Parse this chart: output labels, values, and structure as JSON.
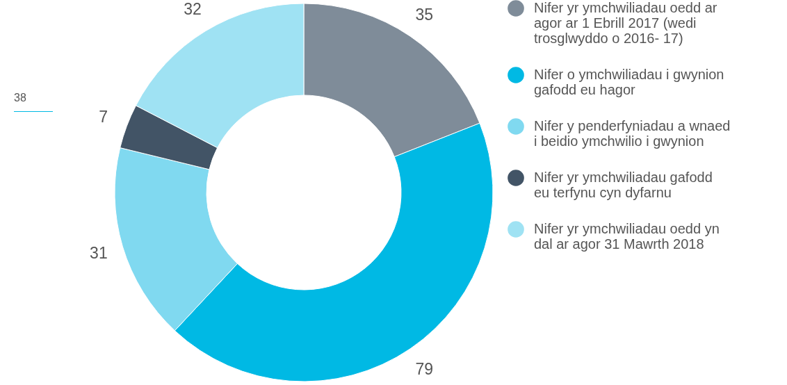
{
  "chart_data": {
    "type": "donut",
    "categories": [
      "Nifer yr ymchwiliadau oedd ar agor ar 1 Ebrill 2017 (wedi trosglwyddo o 2016- 17)",
      "Nifer o ymchwiliadau i gwynion gafodd eu hagor",
      "Nifer y penderfyniadau a wnaed i beidio ymchwilio i gwynion",
      "Nifer yr ymchwiliadau gafodd eu terfynu cyn dyfarnu",
      "Nifer yr ymchwiliadau oedd yn dal ar agor 31 Mawrth 2018"
    ],
    "values": [
      35,
      79,
      31,
      7,
      32
    ],
    "colors": [
      "#7f8c99",
      "#00b9e4",
      "#80d9f0",
      "#425466",
      "#9fe2f3"
    ],
    "data_labels": true,
    "legend": "right",
    "annotations": [
      "38"
    ]
  }
}
